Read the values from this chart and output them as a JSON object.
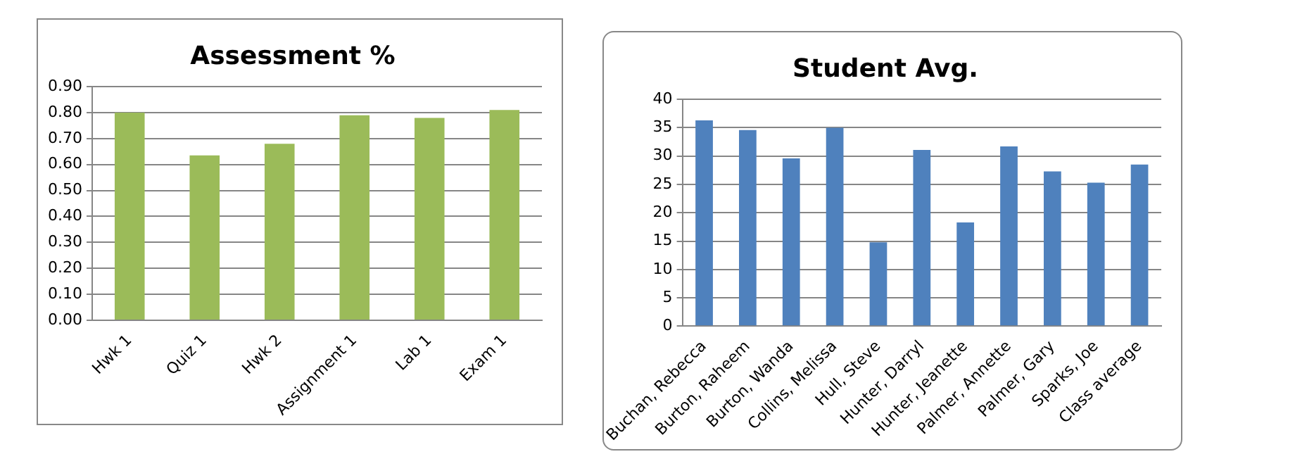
{
  "chart_data": [
    {
      "type": "bar",
      "title": "Assessment %",
      "categories": [
        "Hwk 1",
        "Quiz 1",
        "Hwk 2",
        "Assignment 1",
        "Lab 1",
        "Exam 1"
      ],
      "values": [
        0.8,
        0.635,
        0.68,
        0.79,
        0.78,
        0.81
      ],
      "color": "#9bbb59",
      "ylim": [
        0,
        0.9
      ],
      "yticks": [
        {
          "value": 0,
          "label": "0.00"
        },
        {
          "value": 0.1,
          "label": "0.10"
        },
        {
          "value": 0.2,
          "label": "0.20"
        },
        {
          "value": 0.3,
          "label": "0.30"
        },
        {
          "value": 0.4,
          "label": "0.40"
        },
        {
          "value": 0.5,
          "label": "0.50"
        },
        {
          "value": 0.6,
          "label": "0.60"
        },
        {
          "value": 0.7,
          "label": "0.70"
        },
        {
          "value": 0.8,
          "label": "0.80"
        },
        {
          "value": 0.9,
          "label": "0.90"
        }
      ],
      "grid": "y",
      "legend": false
    },
    {
      "type": "bar",
      "title": "Student Avg.",
      "categories": [
        "Buchan, Rebecca",
        "Burton, Raheem",
        "Burton, Wanda",
        "Collins, Melissa",
        "Hull, Steve",
        "Hunter, Darryl",
        "Hunter, Jeanette",
        "Palmer, Annette",
        "Palmer, Gary",
        "Sparks, Joe",
        "Class average"
      ],
      "values": [
        36.3,
        34.6,
        29.6,
        35.0,
        14.8,
        31.1,
        18.3,
        31.7,
        27.3,
        25.3,
        28.5
      ],
      "color": "#4f81bd",
      "ylim": [
        0,
        40
      ],
      "yticks": [
        0,
        5,
        10,
        15,
        20,
        25,
        30,
        35,
        40
      ],
      "grid": "y",
      "legend": false
    }
  ]
}
